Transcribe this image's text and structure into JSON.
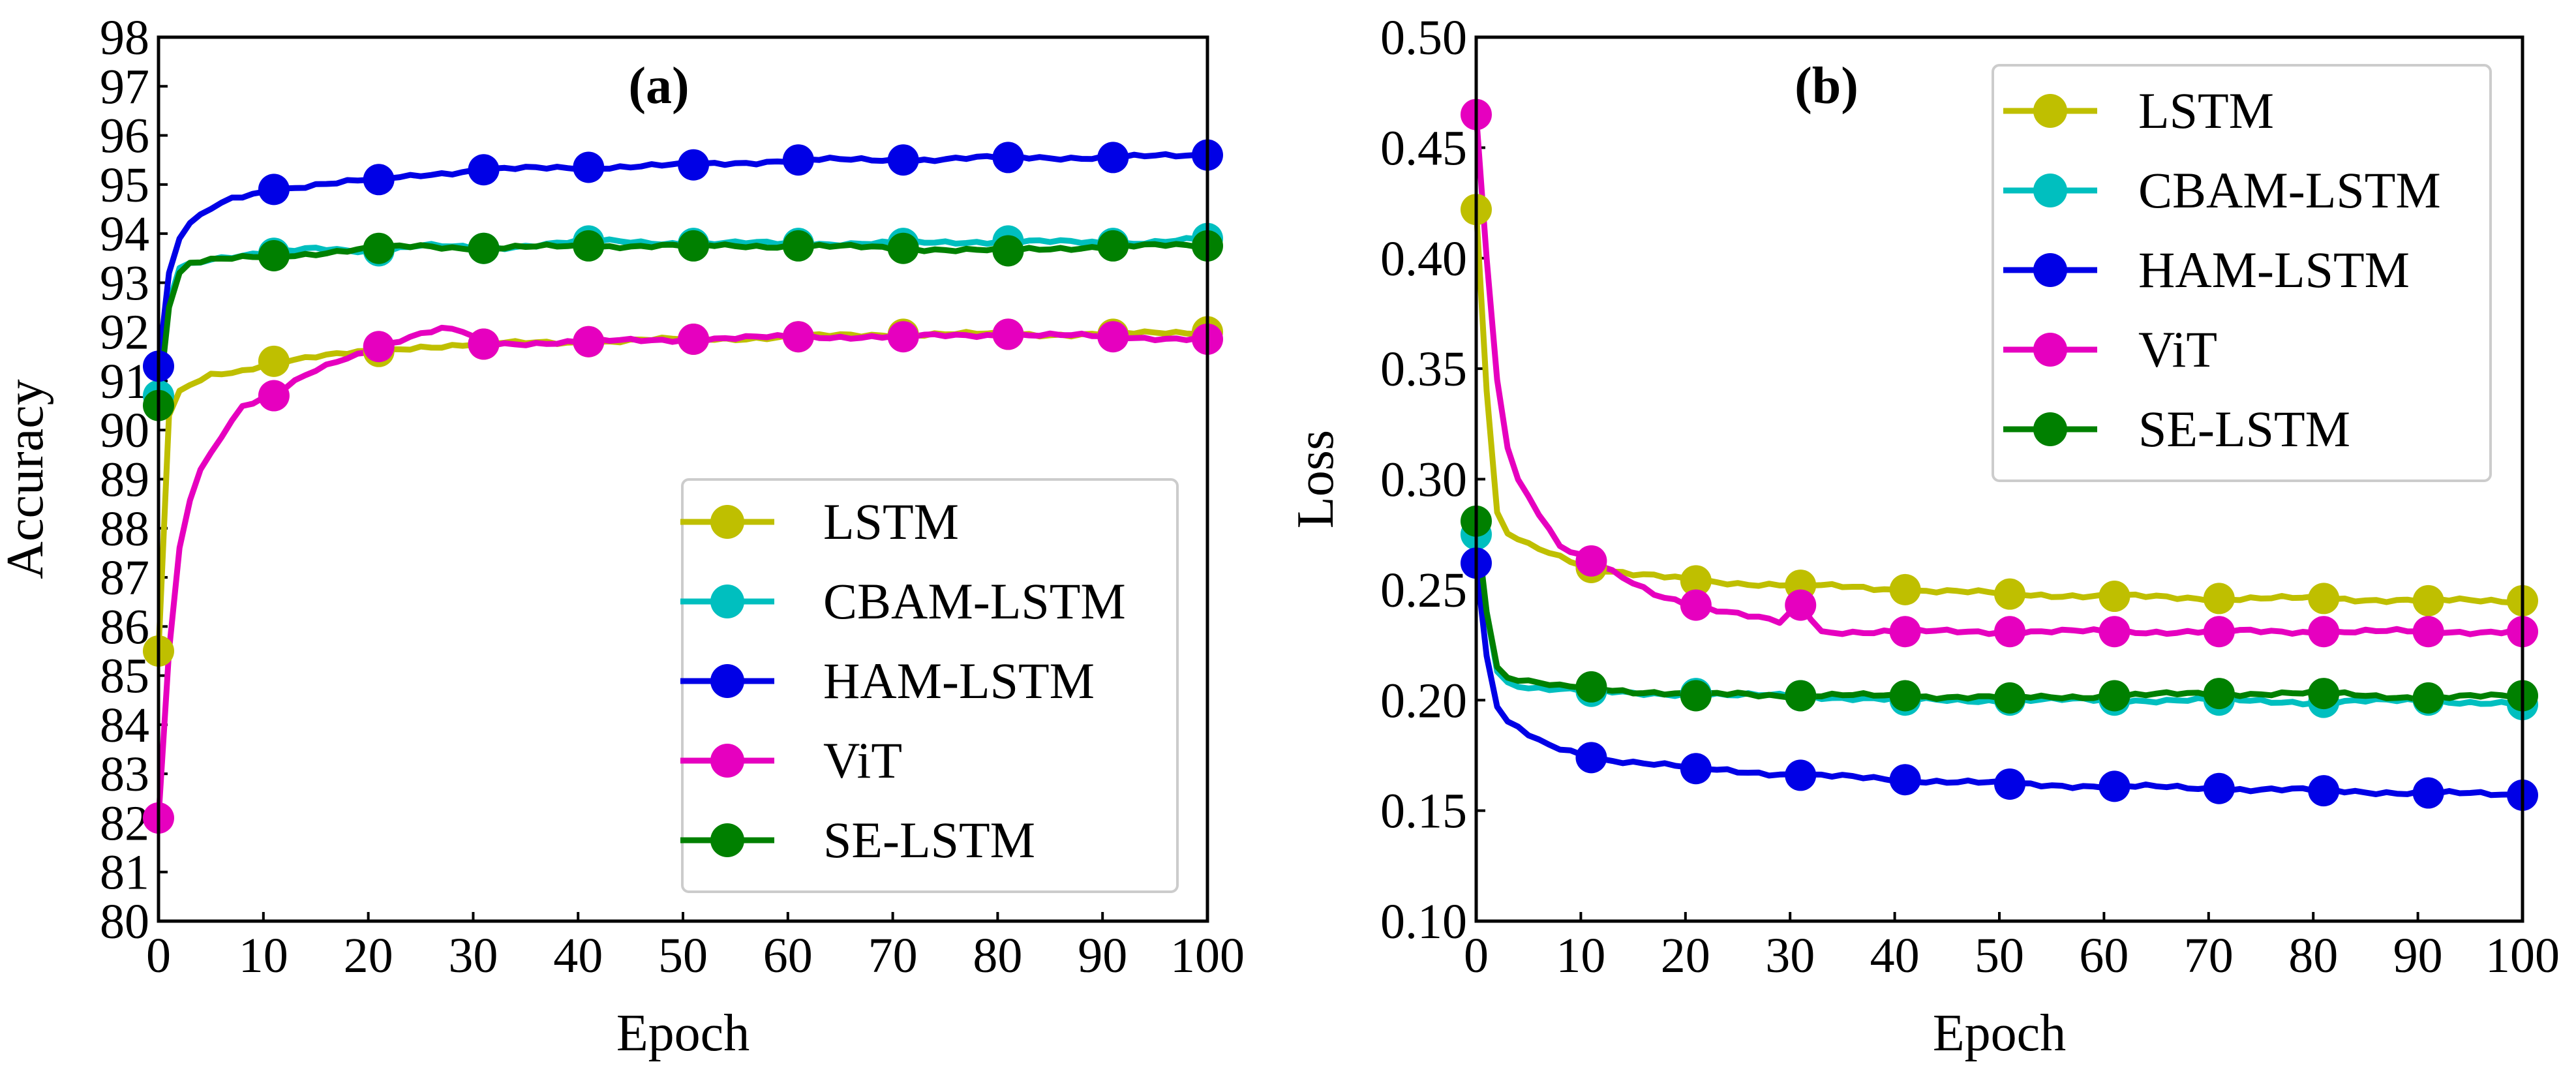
{
  "chart_data": [
    {
      "type": "line",
      "title": "(a)",
      "xlabel": "Epoch",
      "ylabel": "Accuracy",
      "xlim": [
        0,
        100
      ],
      "ylim": [
        80,
        98
      ],
      "xticks": [
        0,
        10,
        20,
        30,
        40,
        50,
        60,
        70,
        80,
        90,
        100
      ],
      "yticks": [
        80,
        81,
        82,
        83,
        84,
        85,
        86,
        87,
        88,
        89,
        90,
        91,
        92,
        93,
        94,
        95,
        96,
        97,
        98
      ],
      "legend_position": "lower-right",
      "marker_x": [
        0,
        11,
        21,
        31,
        41,
        51,
        61,
        71,
        81,
        91,
        100
      ],
      "series": [
        {
          "name": "LSTM",
          "color": "#bfbf00",
          "x": [
            0,
            1,
            2,
            3,
            5,
            8,
            11,
            15,
            21,
            25,
            31,
            41,
            51,
            61,
            71,
            81,
            91,
            100
          ],
          "y": [
            85.5,
            90.3,
            90.8,
            90.9,
            91.1,
            91.2,
            91.4,
            91.5,
            91.6,
            91.7,
            91.75,
            91.8,
            91.85,
            91.9,
            91.95,
            91.95,
            91.95,
            92.0
          ]
        },
        {
          "name": "CBAM-LSTM",
          "color": "#00bfbf",
          "x": [
            0,
            1,
            2,
            3,
            5,
            8,
            11,
            15,
            21,
            25,
            31,
            41,
            51,
            61,
            71,
            81,
            91,
            100
          ],
          "y": [
            90.7,
            92.6,
            93.3,
            93.4,
            93.5,
            93.55,
            93.6,
            93.7,
            93.65,
            93.75,
            93.7,
            93.85,
            93.8,
            93.8,
            93.8,
            93.85,
            93.8,
            93.9
          ]
        },
        {
          "name": "HAM-LSTM",
          "color": "#0000e6",
          "x": [
            0,
            1,
            2,
            3,
            5,
            7,
            11,
            15,
            21,
            25,
            31,
            41,
            51,
            61,
            71,
            81,
            91,
            100
          ],
          "y": [
            91.3,
            93.2,
            93.9,
            94.2,
            94.5,
            94.7,
            94.9,
            95.0,
            95.1,
            95.2,
            95.3,
            95.35,
            95.4,
            95.5,
            95.5,
            95.55,
            95.55,
            95.6
          ]
        },
        {
          "name": "ViT",
          "color": "#e600bf",
          "x": [
            0,
            1,
            2,
            3,
            4,
            6,
            8,
            11,
            14,
            17,
            21,
            24,
            27,
            29,
            31,
            41,
            51,
            61,
            71,
            81,
            91,
            100
          ],
          "y": [
            82.1,
            85.5,
            87.6,
            88.6,
            89.2,
            89.9,
            90.5,
            90.7,
            91.1,
            91.4,
            91.7,
            91.9,
            92.05,
            92.0,
            91.75,
            91.8,
            91.85,
            91.9,
            91.9,
            91.95,
            91.9,
            91.85
          ]
        },
        {
          "name": "SE-LSTM",
          "color": "#008000",
          "x": [
            0,
            1,
            2,
            3,
            5,
            8,
            11,
            15,
            21,
            25,
            31,
            41,
            51,
            61,
            71,
            81,
            91,
            100
          ],
          "y": [
            90.5,
            92.5,
            93.2,
            93.4,
            93.45,
            93.5,
            93.55,
            93.6,
            93.7,
            93.75,
            93.7,
            93.75,
            93.75,
            93.75,
            93.7,
            93.65,
            93.75,
            93.75
          ]
        }
      ]
    },
    {
      "type": "line",
      "title": "(b)",
      "xlabel": "Epoch",
      "ylabel": "Loss",
      "xlim": [
        0,
        100
      ],
      "ylim": [
        0.1,
        0.5
      ],
      "xticks": [
        0,
        10,
        20,
        30,
        40,
        50,
        60,
        70,
        80,
        90,
        100
      ],
      "yticks": [
        0.1,
        0.15,
        0.2,
        0.25,
        0.3,
        0.35,
        0.4,
        0.45,
        0.5
      ],
      "ytick_labels": [
        "0.10",
        "0.15",
        "0.20",
        "0.25",
        "0.30",
        "0.35",
        "0.40",
        "0.45",
        "0.50"
      ],
      "legend_position": "top-right",
      "marker_x": [
        0,
        11,
        21,
        31,
        41,
        51,
        61,
        71,
        81,
        91,
        100
      ],
      "series": [
        {
          "name": "LSTM",
          "color": "#bfbf00",
          "x": [
            0,
            1,
            2,
            3,
            5,
            8,
            11,
            15,
            21,
            25,
            31,
            41,
            51,
            61,
            71,
            81,
            91,
            100
          ],
          "y": [
            0.422,
            0.34,
            0.285,
            0.275,
            0.27,
            0.265,
            0.26,
            0.257,
            0.254,
            0.253,
            0.252,
            0.25,
            0.248,
            0.247,
            0.246,
            0.246,
            0.245,
            0.245
          ]
        },
        {
          "name": "CBAM-LSTM",
          "color": "#00bfbf",
          "x": [
            0,
            1,
            2,
            3,
            5,
            8,
            11,
            15,
            21,
            25,
            31,
            41,
            51,
            61,
            71,
            81,
            91,
            100
          ],
          "y": [
            0.275,
            0.24,
            0.213,
            0.208,
            0.206,
            0.205,
            0.204,
            0.203,
            0.203,
            0.202,
            0.202,
            0.2,
            0.2,
            0.2,
            0.2,
            0.199,
            0.2,
            0.198
          ]
        },
        {
          "name": "HAM-LSTM",
          "color": "#0000e6",
          "x": [
            0,
            1,
            2,
            3,
            5,
            7,
            9,
            11,
            15,
            21,
            25,
            31,
            41,
            51,
            61,
            71,
            81,
            91,
            100
          ],
          "y": [
            0.262,
            0.22,
            0.197,
            0.19,
            0.184,
            0.179,
            0.177,
            0.174,
            0.172,
            0.169,
            0.168,
            0.166,
            0.164,
            0.162,
            0.161,
            0.16,
            0.159,
            0.158,
            0.157
          ]
        },
        {
          "name": "ViT",
          "color": "#e600bf",
          "x": [
            0,
            1,
            2,
            3,
            4,
            6,
            8,
            11,
            14,
            17,
            21,
            24,
            27,
            29,
            31,
            32,
            33,
            41,
            51,
            61,
            71,
            81,
            91,
            100
          ],
          "y": [
            0.465,
            0.4,
            0.345,
            0.315,
            0.3,
            0.285,
            0.27,
            0.263,
            0.255,
            0.248,
            0.243,
            0.24,
            0.237,
            0.235,
            0.243,
            0.237,
            0.231,
            0.231,
            0.231,
            0.231,
            0.231,
            0.231,
            0.231,
            0.231
          ]
        },
        {
          "name": "SE-LSTM",
          "color": "#008000",
          "x": [
            0,
            1,
            2,
            3,
            5,
            8,
            11,
            15,
            21,
            25,
            31,
            41,
            51,
            61,
            71,
            81,
            91,
            100
          ],
          "y": [
            0.281,
            0.24,
            0.215,
            0.21,
            0.208,
            0.206,
            0.206,
            0.204,
            0.202,
            0.203,
            0.202,
            0.202,
            0.201,
            0.202,
            0.203,
            0.203,
            0.201,
            0.202
          ]
        }
      ]
    }
  ]
}
